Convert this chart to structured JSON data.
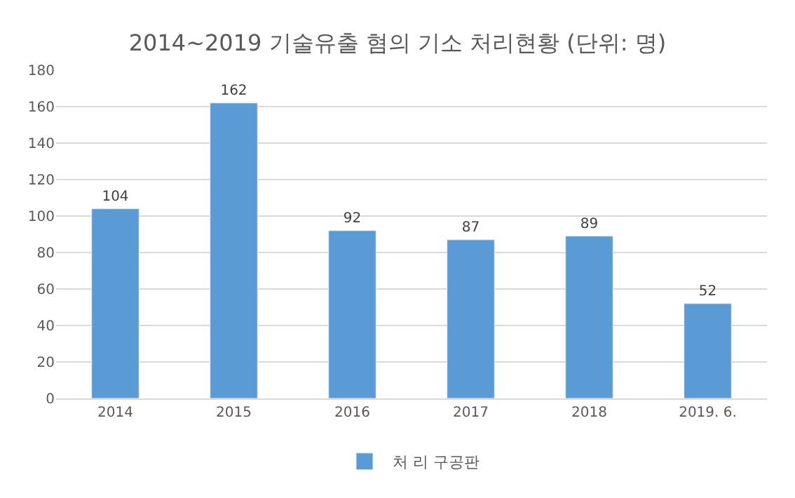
{
  "chart_data": {
    "type": "bar",
    "title": "2014~2019 기술유출 혐의 기소 처리현황 (단위: 명)",
    "categories": [
      "2014",
      "2015",
      "2016",
      "2017",
      "2018",
      "2019. 6."
    ],
    "series": [
      {
        "name": "처 리 구공판",
        "color": "#5b9bd5",
        "values": [
          104,
          162,
          92,
          87,
          89,
          52
        ]
      }
    ],
    "ylim": [
      0,
      180
    ],
    "yticks": [
      0,
      20,
      40,
      60,
      80,
      100,
      120,
      140,
      160,
      180
    ],
    "grid": "y",
    "legend": "bottom",
    "data_labels": true
  }
}
